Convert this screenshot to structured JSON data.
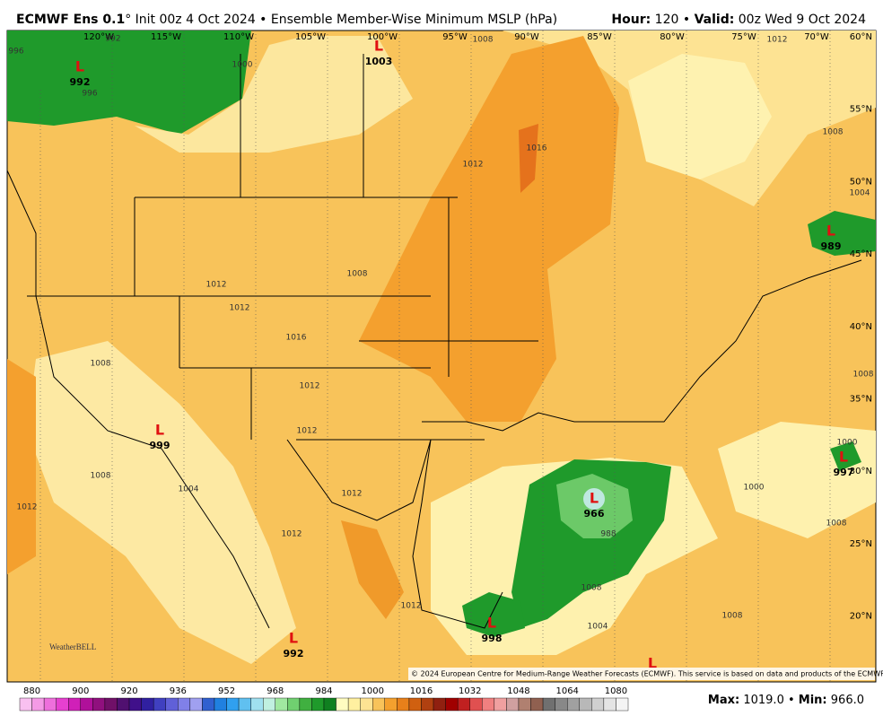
{
  "header": {
    "title_bold": "ECMWF Ens 0.1",
    "title_rest": "° Init 00z 4 Oct 2024 • Ensemble Member-Wise Minimum MSLP (hPa)",
    "right": [
      "Hour:",
      " 120 • ",
      "Valid:",
      " 00z Wed 9 Oct 2024"
    ]
  },
  "map": {
    "longitudes": [
      "120°W",
      "115°W",
      "110°W",
      "105°W",
      "100°W",
      "95°W",
      "90°W",
      "85°W",
      "80°W",
      "75°W",
      "70°W"
    ],
    "latitudes": [
      "60°N",
      "55°N",
      "50°N",
      "45°N",
      "40°N",
      "35°N",
      "30°N",
      "25°N",
      "20°N"
    ],
    "lows": [
      {
        "label": "L",
        "value": "992"
      },
      {
        "label": "L",
        "value": "1003"
      },
      {
        "label": "L",
        "value": "999"
      },
      {
        "label": "L",
        "value": "966"
      },
      {
        "label": "L",
        "value": "998"
      },
      {
        "label": "L",
        "value": "992"
      },
      {
        "label": "L",
        "value": "989"
      },
      {
        "label": "L",
        "value": "997"
      },
      {
        "label": "L"
      }
    ],
    "contour_labels": [
      "992",
      "996",
      "996",
      "1000",
      "1008",
      "1012",
      "1008",
      "1012",
      "1016",
      "1004",
      "1012",
      "1012",
      "1008",
      "1016",
      "1012",
      "1008",
      "1012",
      "1008",
      "1012",
      "1004",
      "1012",
      "1000",
      "1008",
      "1012",
      "1008",
      "1004",
      "1008",
      "1008",
      "1000",
      "1012",
      "988"
    ],
    "logo": "WeatherBELL",
    "copyright": "© 2024 European Centre for Medium-Range Weather Forecasts (ECMWF). This service is based on data and products of the ECMWF."
  },
  "colorbar": {
    "ticks": [
      "880",
      "900",
      "920",
      "936",
      "952",
      "968",
      "984",
      "1000",
      "1016",
      "1032",
      "1048",
      "1064",
      "1080"
    ]
  },
  "footer": [
    "Max:",
    " 1019.0 • ",
    "Min:",
    " 966.0"
  ]
}
